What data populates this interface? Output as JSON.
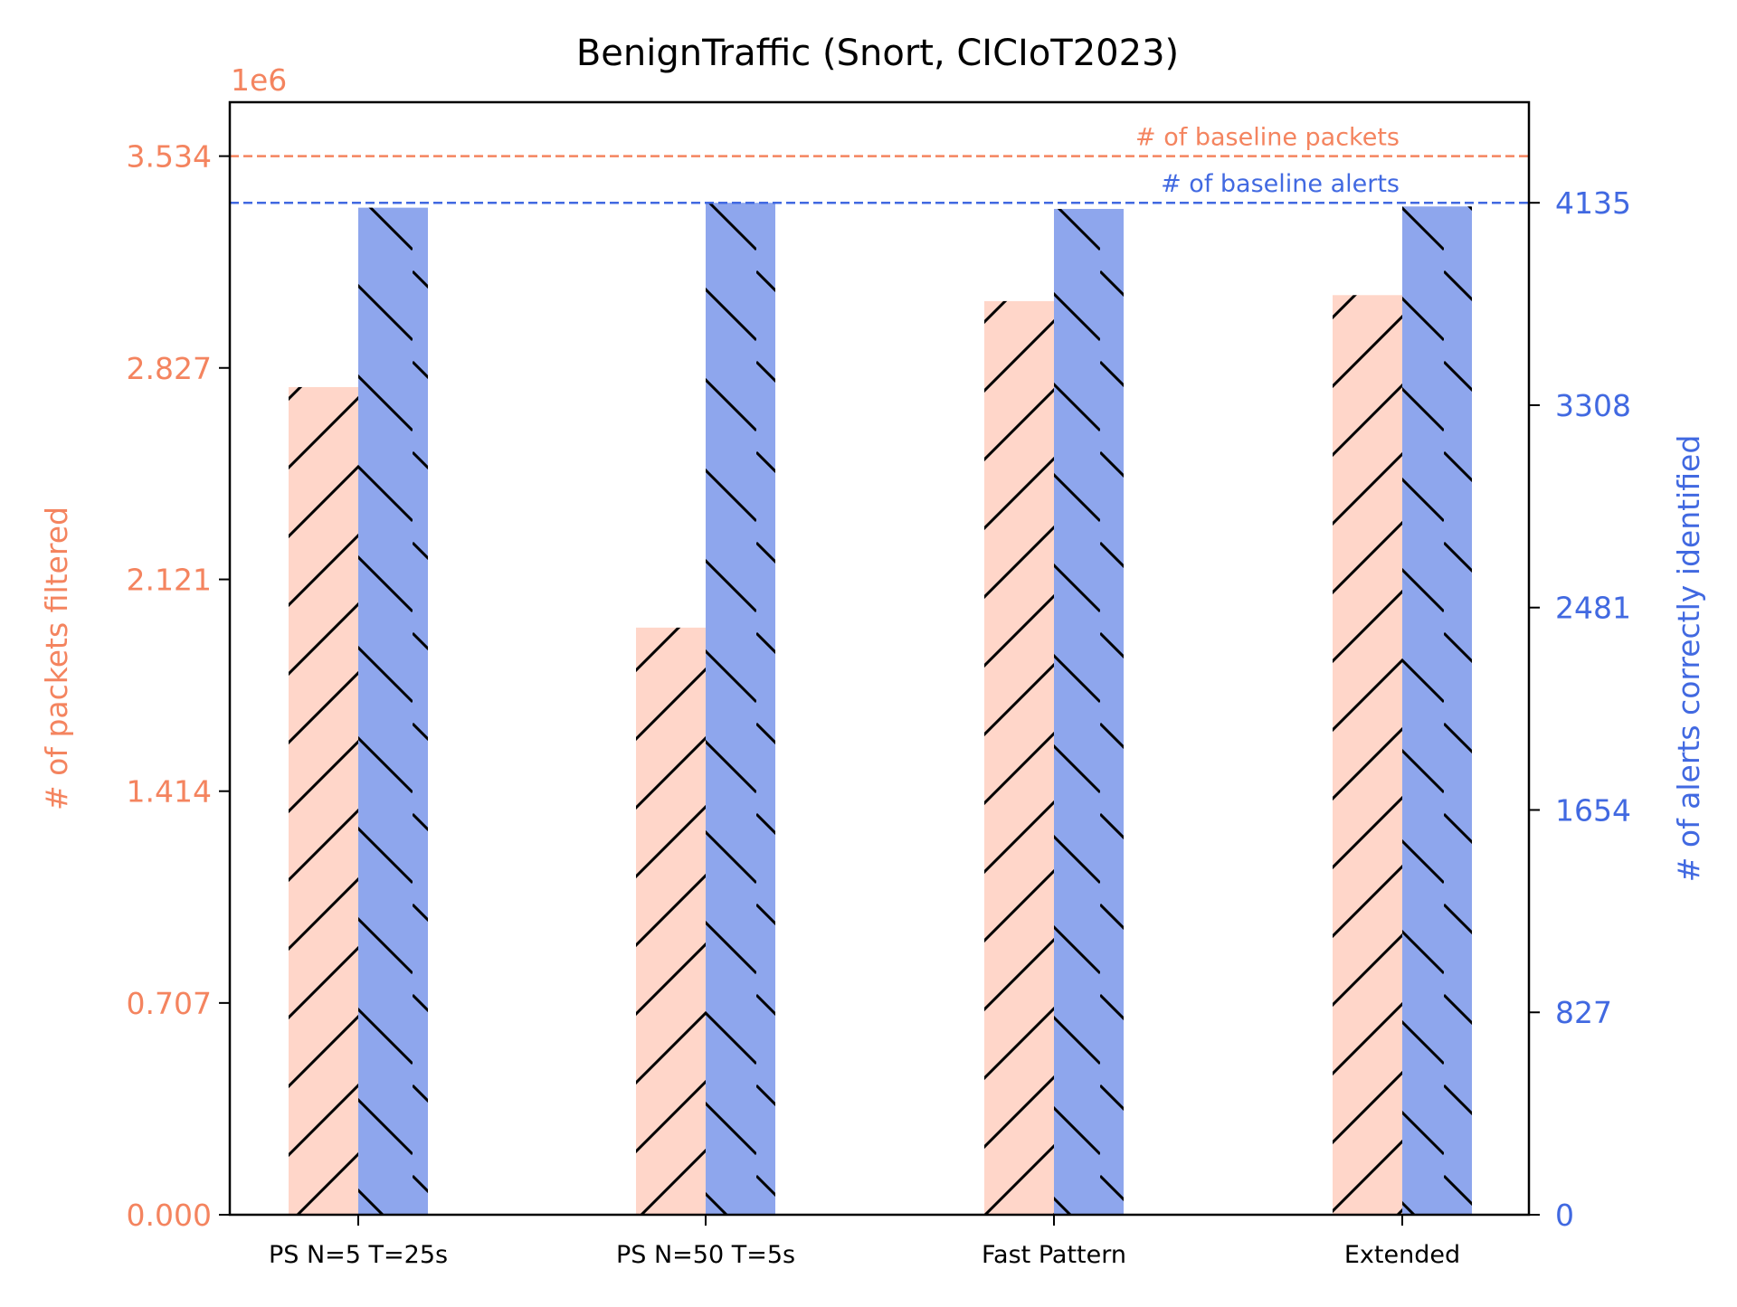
{
  "chart_data": {
    "type": "bar",
    "title": "BenignTraffic (Snort, CICIoT2023)",
    "categories": [
      "PS N=5 T=25s",
      "PS N=50 T=5s",
      "Fast Pattern",
      "Extended"
    ],
    "left_axis": {
      "label": "# of packets filtered",
      "offset_text": "1e6",
      "ticks": [
        "0.000",
        "0.707",
        "1.414",
        "2.121",
        "2.827",
        "3.534"
      ],
      "ylim": [
        0,
        3.714
      ],
      "color": "#f4845f"
    },
    "right_axis": {
      "label": "# of alerts correctly identified",
      "ticks": [
        "0",
        "827",
        "1654",
        "2481",
        "3308",
        "4135"
      ],
      "ylim": [
        0,
        4546
      ],
      "color": "#4169e1"
    },
    "series": [
      {
        "axis": "left",
        "values": [
          2.763,
          1.96,
          3.05,
          3.07
        ],
        "fill": "#ffd6c9",
        "hatch": "forward-diagonal"
      },
      {
        "axis": "right",
        "values": [
          4115,
          4135,
          4110,
          4120
        ],
        "fill": "#8ea6ed",
        "hatch": "back-diagonal"
      }
    ],
    "reference_lines": [
      {
        "axis": "left",
        "value": 3.534,
        "label": "# of baseline packets",
        "color": "#f4845f",
        "style": "dashed"
      },
      {
        "axis": "right",
        "value": 4135,
        "label": "# of baseline alerts",
        "color": "#4169e1",
        "style": "dashed"
      }
    ]
  }
}
